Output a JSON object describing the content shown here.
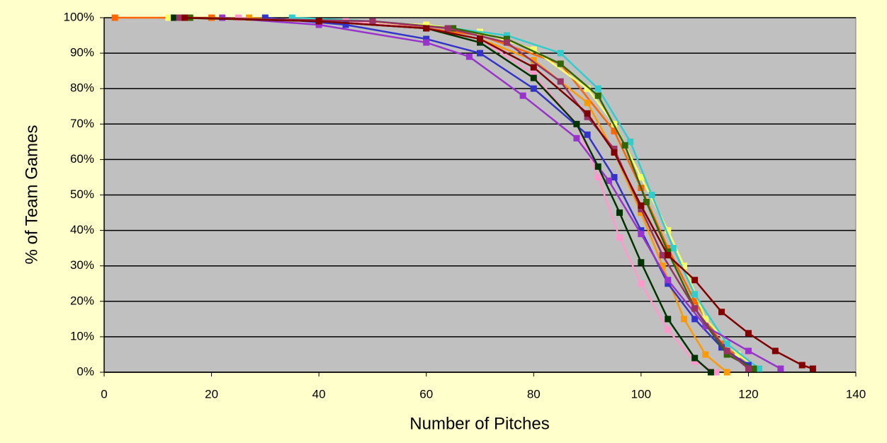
{
  "chart_data": {
    "type": "line",
    "x_label": "Number of Pitches",
    "y_label": "% of Team Games",
    "xlim": [
      0,
      140
    ],
    "xticks": [
      0,
      20,
      40,
      60,
      80,
      100,
      120,
      140
    ],
    "ylim": [
      0,
      100
    ],
    "yticks": [
      {
        "value": 0,
        "label": "0%"
      },
      {
        "value": 10,
        "label": "10%"
      },
      {
        "value": 20,
        "label": "20%"
      },
      {
        "value": 30,
        "label": "30%"
      },
      {
        "value": 40,
        "label": "40%"
      },
      {
        "value": 50,
        "label": "50%"
      },
      {
        "value": 60,
        "label": "60%"
      },
      {
        "value": 70,
        "label": "70%"
      },
      {
        "value": 80,
        "label": "80%"
      },
      {
        "value": 90,
        "label": "90%"
      },
      {
        "value": 100,
        "label": "100%"
      }
    ],
    "grid": true,
    "series": [
      {
        "color": "#ff6600",
        "x": [
          2,
          20,
          50,
          70,
          85,
          95,
          100,
          105,
          110,
          115,
          120
        ],
        "values": [
          100,
          100,
          99,
          95,
          87,
          68,
          52,
          35,
          20,
          8,
          2
        ]
      },
      {
        "color": "#ffff66",
        "x": [
          12,
          40,
          60,
          70,
          80,
          90,
          95,
          100,
          105,
          108,
          112,
          118,
          122
        ],
        "values": [
          100,
          99,
          98,
          96,
          91,
          80,
          70,
          55,
          40,
          30,
          15,
          5,
          1
        ]
      },
      {
        "color": "#33cccc",
        "x": [
          35,
          50,
          65,
          75,
          85,
          92,
          98,
          102,
          106,
          110,
          116,
          122
        ],
        "values": [
          100,
          99,
          97,
          95,
          90,
          80,
          65,
          50,
          35,
          22,
          8,
          1
        ]
      },
      {
        "color": "#ff99cc",
        "x": [
          25,
          45,
          60,
          70,
          80,
          88,
          92,
          96,
          100,
          105,
          110,
          114
        ],
        "values": [
          100,
          99,
          97,
          94,
          84,
          70,
          55,
          38,
          25,
          12,
          3,
          0
        ]
      },
      {
        "color": "#ff9900",
        "x": [
          27,
          40,
          60,
          70,
          80,
          90,
          95,
          100,
          104,
          108,
          112,
          116
        ],
        "values": [
          100,
          99,
          97,
          94,
          88,
          76,
          62,
          45,
          30,
          15,
          5,
          0
        ]
      },
      {
        "color": "#3333cc",
        "x": [
          30,
          45,
          60,
          70,
          80,
          90,
          95,
          100,
          105,
          110,
          115,
          120
        ],
        "values": [
          100,
          98,
          94,
          90,
          80,
          67,
          55,
          40,
          25,
          15,
          7,
          2
        ]
      },
      {
        "color": "#9933cc",
        "x": [
          22,
          40,
          60,
          68,
          78,
          88,
          94,
          100,
          105,
          112,
          120,
          126
        ],
        "values": [
          100,
          98,
          93,
          89,
          78,
          66,
          54,
          39,
          26,
          13,
          6,
          1
        ]
      },
      {
        "color": "#336600",
        "x": [
          16,
          50,
          65,
          75,
          85,
          92,
          97,
          101,
          105,
          110,
          116,
          121
        ],
        "values": [
          100,
          99,
          97,
          94,
          87,
          78,
          64,
          48,
          34,
          18,
          5,
          1
        ]
      },
      {
        "color": "#003300",
        "x": [
          13,
          40,
          60,
          70,
          80,
          88,
          92,
          96,
          100,
          105,
          110,
          113
        ],
        "values": [
          100,
          99,
          97,
          93,
          83,
          70,
          58,
          45,
          31,
          15,
          4,
          0
        ]
      },
      {
        "color": "#993366",
        "x": [
          14,
          50,
          64,
          75,
          85,
          90,
          95,
          100,
          104,
          110,
          116,
          120
        ],
        "values": [
          100,
          99,
          97,
          93,
          82,
          72,
          63,
          46,
          33,
          18,
          6,
          1
        ]
      },
      {
        "color": "#800000",
        "x": [
          15,
          40,
          60,
          70,
          80,
          90,
          95,
          100,
          105,
          110,
          115,
          120,
          125,
          130,
          132
        ],
        "values": [
          100,
          99,
          97,
          94,
          86,
          73,
          62,
          47,
          33,
          26,
          17,
          11,
          6,
          2,
          1
        ]
      }
    ]
  }
}
